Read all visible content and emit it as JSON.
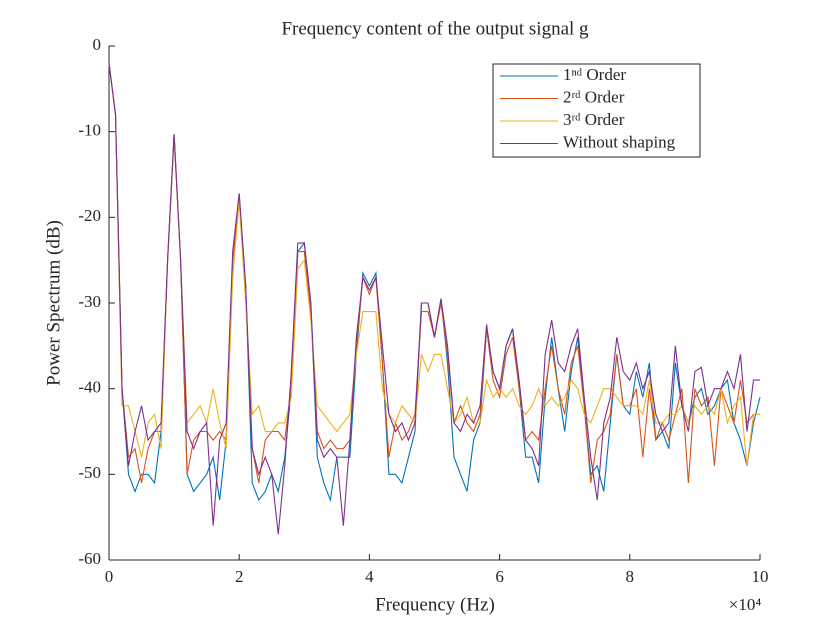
{
  "chart_data": {
    "type": "line",
    "title": "Frequency content of the output signal g",
    "xlabel": "Frequency (Hz)",
    "ylabel": "Power Spectrum (dB)",
    "x_multiplier": "×10⁴",
    "xlim": [
      0,
      100000
    ],
    "ylim": [
      -60,
      0
    ],
    "xticks": [
      {
        "value": 0,
        "label": "0"
      },
      {
        "value": 20000,
        "label": "2"
      },
      {
        "value": 40000,
        "label": "4"
      },
      {
        "value": 60000,
        "label": "6"
      },
      {
        "value": 80000,
        "label": "8"
      },
      {
        "value": 100000,
        "label": "10"
      }
    ],
    "yticks": [
      0,
      -10,
      -20,
      -30,
      -40,
      -50,
      -60
    ],
    "grid": false,
    "legend": "upper right",
    "x": [
      0,
      1000,
      2000,
      3000,
      4000,
      5000,
      6000,
      7000,
      8000,
      9000,
      10000,
      11000,
      12000,
      13000,
      14000,
      15000,
      16000,
      17000,
      18000,
      19000,
      20000,
      21000,
      22000,
      23000,
      24000,
      25000,
      26000,
      27000,
      28000,
      29000,
      30000,
      31000,
      32000,
      33000,
      34000,
      35000,
      36000,
      37000,
      38000,
      39000,
      40000,
      41000,
      42000,
      43000,
      44000,
      45000,
      46000,
      47000,
      48000,
      49000,
      50000,
      51000,
      52000,
      53000,
      54000,
      55000,
      56000,
      57000,
      58000,
      59000,
      60000,
      61000,
      62000,
      63000,
      64000,
      65000,
      66000,
      67000,
      68000,
      69000,
      70000,
      71000,
      72000,
      73000,
      74000,
      75000,
      76000,
      77000,
      78000,
      79000,
      80000,
      81000,
      82000,
      83000,
      84000,
      85000,
      86000,
      87000,
      88000,
      89000,
      90000,
      91000,
      92000,
      93000,
      94000,
      95000,
      96000,
      97000,
      98000,
      99000,
      100000
    ],
    "series": [
      {
        "name": "1ⁿᵈ Order",
        "color": "#0072BD",
        "values": [
          -2,
          -8,
          -40,
          -50,
          -52,
          -50,
          -50,
          -51,
          -45,
          -25,
          -10.3,
          -25,
          -50,
          -52,
          -51,
          -50,
          -48,
          -53,
          -46,
          -25,
          -17.5,
          -28,
          -51,
          -53,
          -52,
          -50,
          -52,
          -48,
          -40,
          -24,
          -23,
          -30,
          -48,
          -51,
          -53,
          -48,
          -48,
          -48,
          -36,
          -26.5,
          -28,
          -26.5,
          -37,
          -50,
          -50,
          -51,
          -48,
          -45,
          -30,
          -30,
          -34,
          -29.5,
          -37,
          -48,
          -50,
          -52,
          -46,
          -44,
          -33,
          -38,
          -40,
          -35,
          -33,
          -40,
          -48,
          -48,
          -51,
          -41,
          -34,
          -40,
          -45,
          -38,
          -34,
          -42,
          -50,
          -49,
          -52,
          -44,
          -36,
          -42,
          -43,
          -38,
          -41,
          -37,
          -46,
          -45,
          -47,
          -37,
          -42,
          -44,
          -41,
          -40,
          -43,
          -42,
          -40,
          -39,
          -44,
          -46,
          -49,
          -44,
          -41
        ]
      },
      {
        "name": "2ʳᵈ Order",
        "color": "#D95319",
        "values": [
          -2,
          -8,
          -40,
          -48,
          -47,
          -51,
          -47,
          -45,
          -45,
          -25,
          -10.5,
          -25,
          -50,
          -46,
          -45,
          -45,
          -46,
          -45,
          -46,
          -25,
          -18,
          -29,
          -47,
          -51,
          -46,
          -45,
          -45,
          -46,
          -40,
          -24,
          -24,
          -31,
          -45,
          -47,
          -46,
          -47,
          -47,
          -46,
          -35,
          -27,
          -29,
          -27,
          -37,
          -48,
          -44,
          -46,
          -45,
          -43,
          -31,
          -31,
          -34,
          -30,
          -36,
          -44,
          -42,
          -44,
          -45,
          -43,
          -33,
          -39,
          -41,
          -36,
          -34,
          -40,
          -46,
          -45,
          -46,
          -40,
          -35,
          -40,
          -43,
          -37,
          -35,
          -42,
          -51,
          -46,
          -45,
          -43,
          -36,
          -42,
          -42,
          -40,
          -48,
          -40,
          -46,
          -44,
          -46,
          -43,
          -40,
          -51,
          -40,
          -42,
          -41,
          -49,
          -40,
          -42,
          -44,
          -39,
          -44,
          -43,
          -43
        ]
      },
      {
        "name": "3ʳᵈ Order",
        "color": "#EDB120",
        "values": [
          -2,
          -8,
          -42,
          -42,
          -45,
          -48,
          -44,
          -43,
          -47,
          -25,
          -10.5,
          -25,
          -44,
          -43,
          -42,
          -44,
          -40,
          -44,
          -47,
          -27,
          -18,
          -30,
          -43,
          -42,
          -45,
          -45,
          -44,
          -44,
          -41,
          -26,
          -25,
          -32,
          -42,
          -43,
          -44,
          -45,
          -44,
          -43,
          -36,
          -31,
          -31,
          -31,
          -40,
          -43,
          -44,
          -42,
          -43,
          -44,
          -36,
          -38,
          -36,
          -36,
          -40,
          -44,
          -43,
          -41,
          -44,
          -44,
          -39,
          -41,
          -40,
          -41,
          -40,
          -42,
          -43,
          -42,
          -40,
          -42,
          -41,
          -42,
          -41,
          -39,
          -40,
          -43,
          -44,
          -42,
          -40,
          -40,
          -41,
          -42,
          -42,
          -42,
          -43,
          -39,
          -44,
          -44,
          -43,
          -43,
          -42,
          -44,
          -42,
          -43,
          -42,
          -43,
          -40,
          -44,
          -42,
          -41,
          -49,
          -43,
          -43
        ]
      },
      {
        "name": "Without shaping",
        "color": "#7E2F8E",
        "values": [
          -2,
          -8,
          -40,
          -49,
          -45,
          -42,
          -46,
          -45,
          -44,
          -25,
          -10.3,
          -25,
          -45,
          -47,
          -45,
          -44,
          -56,
          -46,
          -44,
          -24,
          -17.2,
          -28,
          -47,
          -50,
          -48,
          -50,
          -57,
          -49,
          -38,
          -23,
          -23,
          -30,
          -46,
          -48,
          -47,
          -48,
          -56,
          -46,
          -34,
          -27,
          -28.5,
          -27,
          -35,
          -43,
          -45,
          -44,
          -46,
          -44,
          -30,
          -30,
          -34,
          -29.5,
          -35,
          -44,
          -45,
          -43,
          -44,
          -42,
          -32.5,
          -38,
          -40,
          -35,
          -33,
          -39,
          -46,
          -47,
          -49,
          -36,
          -32,
          -37,
          -38,
          -35,
          -33,
          -41,
          -48,
          -53,
          -44,
          -41,
          -34,
          -38,
          -39,
          -37,
          -40,
          -38,
          -43,
          -45,
          -44,
          -35,
          -42,
          -45,
          -38,
          -37.5,
          -42,
          -40,
          -40,
          -38,
          -40,
          -36,
          -45,
          -39,
          -39
        ]
      }
    ]
  }
}
